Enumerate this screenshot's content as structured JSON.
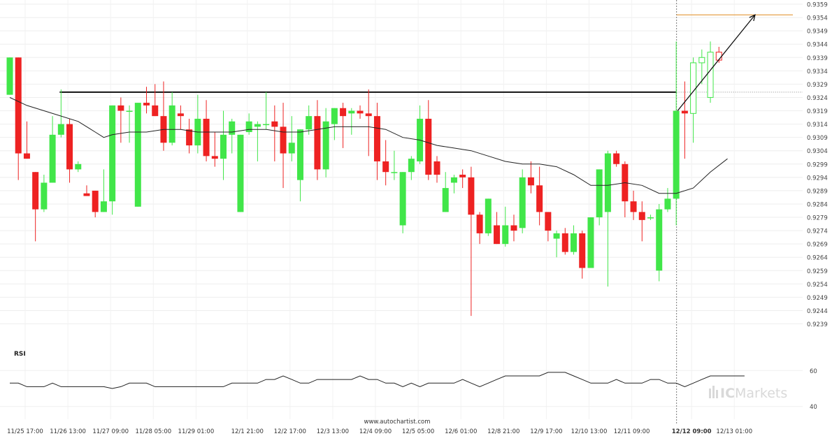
{
  "chart_data": [
    {
      "type": "candlestick",
      "title": "",
      "x_tick_labels": [
        "11/25 17:00",
        "11/26 13:00",
        "11/27 09:00",
        "11/28 05:00",
        "11/29 01:00",
        "12/1 21:00",
        "12/2 17:00",
        "12/3 13:00",
        "12/4 09:00",
        "12/5 05:00",
        "12/6 01:00",
        "12/8 21:00",
        "12/9 17:00",
        "12/10 13:00",
        "12/11 09:00",
        "12/12 09:00",
        "12/13 01:00"
      ],
      "y_tick_labels": [
        "0.9359",
        "0.9354",
        "0.9349",
        "0.9344",
        "0.9339",
        "0.9334",
        "0.9329",
        "0.9324",
        "0.9319",
        "0.9314",
        "0.9309",
        "0.9304",
        "0.9299",
        "0.9294",
        "0.9289",
        "0.9284",
        "0.9279",
        "0.9274",
        "0.9269",
        "0.9264",
        "0.9259",
        "0.9254",
        "0.9249",
        "0.9244",
        "0.9239"
      ],
      "ylim": [
        0.9236,
        0.9359
      ],
      "grid": true,
      "colors": {
        "up": "#41e649",
        "down": "#ee2222",
        "ma": "#222222",
        "resistance": "#111111",
        "target": "#e08a1e",
        "grid": "#eeeeee"
      },
      "candles": [
        {
          "o": 0.9325,
          "h": 0.9339,
          "l": 0.9325,
          "c": 0.9339
        },
        {
          "o": 0.9339,
          "h": 0.9339,
          "l": 0.9293,
          "c": 0.9303
        },
        {
          "o": 0.9303,
          "h": 0.9315,
          "l": 0.9301,
          "c": 0.9301
        },
        {
          "o": 0.9296,
          "h": 0.9296,
          "l": 0.927,
          "c": 0.9282
        },
        {
          "o": 0.9282,
          "h": 0.9295,
          "l": 0.9281,
          "c": 0.9292
        },
        {
          "o": 0.9292,
          "h": 0.9317,
          "l": 0.9292,
          "c": 0.931
        },
        {
          "o": 0.931,
          "h": 0.9327,
          "l": 0.9309,
          "c": 0.9314
        },
        {
          "o": 0.9314,
          "h": 0.9316,
          "l": 0.9292,
          "c": 0.9297
        },
        {
          "o": 0.9297,
          "h": 0.93,
          "l": 0.9296,
          "c": 0.9299
        },
        {
          "o": 0.9288,
          "h": 0.9291,
          "l": 0.9287,
          "c": 0.9287
        },
        {
          "o": 0.9289,
          "h": 0.9289,
          "l": 0.9279,
          "c": 0.9281
        },
        {
          "o": 0.9281,
          "h": 0.9297,
          "l": 0.9281,
          "c": 0.9285
        },
        {
          "o": 0.9285,
          "h": 0.9321,
          "l": 0.928,
          "c": 0.9321
        },
        {
          "o": 0.9321,
          "h": 0.9324,
          "l": 0.9307,
          "c": 0.9319
        },
        {
          "o": 0.9319,
          "h": 0.9321,
          "l": 0.9307,
          "c": 0.9319
        },
        {
          "o": 0.9283,
          "h": 0.9322,
          "l": 0.9283,
          "c": 0.9322
        },
        {
          "o": 0.9322,
          "h": 0.9328,
          "l": 0.9318,
          "c": 0.9321
        },
        {
          "o": 0.9321,
          "h": 0.9329,
          "l": 0.9317,
          "c": 0.9317
        },
        {
          "o": 0.9317,
          "h": 0.933,
          "l": 0.9304,
          "c": 0.9307
        },
        {
          "o": 0.9307,
          "h": 0.9326,
          "l": 0.9306,
          "c": 0.9321
        },
        {
          "o": 0.9318,
          "h": 0.9321,
          "l": 0.9312,
          "c": 0.9317
        },
        {
          "o": 0.9312,
          "h": 0.9316,
          "l": 0.9303,
          "c": 0.9306
        },
        {
          "o": 0.9306,
          "h": 0.9325,
          "l": 0.9303,
          "c": 0.9316
        },
        {
          "o": 0.9316,
          "h": 0.9323,
          "l": 0.93,
          "c": 0.9302
        },
        {
          "o": 0.9302,
          "h": 0.9311,
          "l": 0.9298,
          "c": 0.9301
        },
        {
          "o": 0.9301,
          "h": 0.9319,
          "l": 0.9293,
          "c": 0.931
        },
        {
          "o": 0.931,
          "h": 0.9316,
          "l": 0.9303,
          "c": 0.9315
        },
        {
          "o": 0.9281,
          "h": 0.931,
          "l": 0.9281,
          "c": 0.931
        },
        {
          "o": 0.9311,
          "h": 0.9318,
          "l": 0.931,
          "c": 0.9315
        },
        {
          "o": 0.9313,
          "h": 0.9315,
          "l": 0.93,
          "c": 0.9314
        },
        {
          "o": 0.9314,
          "h": 0.9326,
          "l": 0.9312,
          "c": 0.9314
        },
        {
          "o": 0.9315,
          "h": 0.9321,
          "l": 0.93,
          "c": 0.9313
        },
        {
          "o": 0.9313,
          "h": 0.9322,
          "l": 0.929,
          "c": 0.9303
        },
        {
          "o": 0.9303,
          "h": 0.9317,
          "l": 0.93,
          "c": 0.9307
        },
        {
          "o": 0.9293,
          "h": 0.9312,
          "l": 0.9285,
          "c": 0.9312
        },
        {
          "o": 0.9312,
          "h": 0.9321,
          "l": 0.931,
          "c": 0.9317
        },
        {
          "o": 0.9317,
          "h": 0.9323,
          "l": 0.9293,
          "c": 0.9297
        },
        {
          "o": 0.9297,
          "h": 0.932,
          "l": 0.9294,
          "c": 0.9315
        },
        {
          "o": 0.9314,
          "h": 0.932,
          "l": 0.9308,
          "c": 0.932
        },
        {
          "o": 0.932,
          "h": 0.9322,
          "l": 0.9305,
          "c": 0.9317
        },
        {
          "o": 0.9318,
          "h": 0.932,
          "l": 0.931,
          "c": 0.9319
        },
        {
          "o": 0.9319,
          "h": 0.9321,
          "l": 0.9316,
          "c": 0.9318
        },
        {
          "o": 0.9318,
          "h": 0.9327,
          "l": 0.9302,
          "c": 0.9317
        },
        {
          "o": 0.9317,
          "h": 0.9322,
          "l": 0.9293,
          "c": 0.93
        },
        {
          "o": 0.93,
          "h": 0.9308,
          "l": 0.9291,
          "c": 0.9296
        },
        {
          "o": 0.9296,
          "h": 0.9304,
          "l": 0.9293,
          "c": 0.9296
        },
        {
          "o": 0.9276,
          "h": 0.9296,
          "l": 0.9273,
          "c": 0.9296
        },
        {
          "o": 0.9296,
          "h": 0.9302,
          "l": 0.9293,
          "c": 0.9301
        },
        {
          "o": 0.93,
          "h": 0.9321,
          "l": 0.9299,
          "c": 0.9316
        },
        {
          "o": 0.9316,
          "h": 0.9323,
          "l": 0.9293,
          "c": 0.9295
        },
        {
          "o": 0.93,
          "h": 0.9302,
          "l": 0.9292,
          "c": 0.9295
        },
        {
          "o": 0.9281,
          "h": 0.9296,
          "l": 0.9281,
          "c": 0.929
        },
        {
          "o": 0.9292,
          "h": 0.9295,
          "l": 0.9288,
          "c": 0.9294
        },
        {
          "o": 0.9295,
          "h": 0.9297,
          "l": 0.929,
          "c": 0.9294
        },
        {
          "o": 0.9294,
          "h": 0.9298,
          "l": 0.9242,
          "c": 0.928
        },
        {
          "o": 0.928,
          "h": 0.9281,
          "l": 0.9269,
          "c": 0.9273
        },
        {
          "o": 0.9273,
          "h": 0.9286,
          "l": 0.9272,
          "c": 0.9286
        },
        {
          "o": 0.9276,
          "h": 0.9281,
          "l": 0.9269,
          "c": 0.9269
        },
        {
          "o": 0.9269,
          "h": 0.9283,
          "l": 0.9268,
          "c": 0.9276
        },
        {
          "o": 0.9276,
          "h": 0.928,
          "l": 0.927,
          "c": 0.9274
        },
        {
          "o": 0.9275,
          "h": 0.9297,
          "l": 0.9273,
          "c": 0.9294
        },
        {
          "o": 0.9294,
          "h": 0.93,
          "l": 0.9288,
          "c": 0.9291
        },
        {
          "o": 0.9291,
          "h": 0.9298,
          "l": 0.9276,
          "c": 0.9281
        },
        {
          "o": 0.9281,
          "h": 0.9281,
          "l": 0.927,
          "c": 0.9274
        },
        {
          "o": 0.9271,
          "h": 0.9274,
          "l": 0.9264,
          "c": 0.9273
        },
        {
          "o": 0.9273,
          "h": 0.9275,
          "l": 0.9265,
          "c": 0.9266
        },
        {
          "o": 0.9266,
          "h": 0.9276,
          "l": 0.9265,
          "c": 0.9273
        },
        {
          "o": 0.9273,
          "h": 0.9274,
          "l": 0.9256,
          "c": 0.926
        },
        {
          "o": 0.926,
          "h": 0.9279,
          "l": 0.926,
          "c": 0.9279
        },
        {
          "o": 0.9279,
          "h": 0.9297,
          "l": 0.9276,
          "c": 0.9297
        },
        {
          "o": 0.9281,
          "h": 0.9304,
          "l": 0.9253,
          "c": 0.9303
        },
        {
          "o": 0.9303,
          "h": 0.9304,
          "l": 0.9298,
          "c": 0.9299
        },
        {
          "o": 0.9299,
          "h": 0.93,
          "l": 0.9279,
          "c": 0.9285
        },
        {
          "o": 0.9285,
          "h": 0.9289,
          "l": 0.9278,
          "c": 0.9281
        },
        {
          "o": 0.9281,
          "h": 0.9285,
          "l": 0.927,
          "c": 0.9278
        },
        {
          "o": 0.9279,
          "h": 0.928,
          "l": 0.9278,
          "c": 0.9279
        },
        {
          "o": 0.9259,
          "h": 0.9284,
          "l": 0.9255,
          "c": 0.9282
        },
        {
          "o": 0.9282,
          "h": 0.929,
          "l": 0.9281,
          "c": 0.9286
        },
        {
          "o": 0.9286,
          "h": 0.9345,
          "l": 0.9276,
          "c": 0.9319
        },
        {
          "o": 0.9319,
          "h": 0.933,
          "l": 0.9301,
          "c": 0.9318
        },
        {
          "o": 0.9318,
          "h": 0.9339,
          "l": 0.9307,
          "c": 0.9337
        },
        {
          "o": 0.9337,
          "h": 0.9342,
          "l": 0.9329,
          "c": 0.9339
        },
        {
          "o": 0.9324,
          "h": 0.9345,
          "l": 0.9322,
          "c": 0.9341
        },
        {
          "o": 0.9341,
          "h": 0.9343,
          "l": 0.9337,
          "c": 0.9338
        }
      ],
      "moving_average": [
        [
          0,
          0.9324
        ],
        [
          2,
          0.9321
        ],
        [
          4,
          0.9319
        ],
        [
          6,
          0.9317
        ],
        [
          8,
          0.9315
        ],
        [
          10,
          0.9311
        ],
        [
          11,
          0.9309
        ],
        [
          12,
          0.931
        ],
        [
          14,
          0.9311
        ],
        [
          16,
          0.9311
        ],
        [
          18,
          0.9312
        ],
        [
          20,
          0.9312
        ],
        [
          22,
          0.9311
        ],
        [
          24,
          0.9311
        ],
        [
          26,
          0.9311
        ],
        [
          28,
          0.9312
        ],
        [
          30,
          0.9312
        ],
        [
          32,
          0.9311
        ],
        [
          34,
          0.9311
        ],
        [
          36,
          0.9312
        ],
        [
          38,
          0.9313
        ],
        [
          40,
          0.9313
        ],
        [
          42,
          0.9313
        ],
        [
          44,
          0.9312
        ],
        [
          46,
          0.9309
        ],
        [
          48,
          0.9308
        ],
        [
          50,
          0.9306
        ],
        [
          52,
          0.9305
        ],
        [
          54,
          0.9304
        ],
        [
          56,
          0.9302
        ],
        [
          58,
          0.93
        ],
        [
          60,
          0.9299
        ],
        [
          62,
          0.9299
        ],
        [
          64,
          0.9298
        ],
        [
          66,
          0.9295
        ],
        [
          68,
          0.9291
        ],
        [
          70,
          0.9291
        ],
        [
          72,
          0.9292
        ],
        [
          74,
          0.9291
        ],
        [
          76,
          0.9288
        ],
        [
          78,
          0.9288
        ],
        [
          80,
          0.929
        ],
        [
          82,
          0.9296
        ],
        [
          84,
          0.9301
        ]
      ],
      "resistance_level": 0.9326,
      "target_level": 0.9355,
      "breakout_index": 78,
      "trend_arrow": {
        "from": [
          78,
          0.9319
        ],
        "to": [
          86,
          0.9355
        ]
      }
    },
    {
      "type": "line",
      "title": "RSI",
      "y_tick_labels": [
        "60",
        "40"
      ],
      "ylim": [
        36,
        64
      ],
      "values": [
        53,
        53,
        51,
        51,
        51,
        53,
        51,
        51,
        51,
        51,
        51,
        51,
        50,
        51,
        53,
        53,
        53,
        51,
        51,
        51,
        51,
        51,
        51,
        51,
        51,
        51,
        53,
        53,
        53,
        53,
        55,
        55,
        57,
        55,
        53,
        53,
        55,
        55,
        55,
        55,
        55,
        57,
        55,
        55,
        53,
        53,
        51,
        53,
        51,
        53,
        53,
        53,
        53,
        55,
        53,
        51,
        53,
        55,
        57,
        57,
        57,
        57,
        57,
        59,
        59,
        59,
        57,
        55,
        53,
        53,
        53,
        55,
        53,
        53,
        53,
        55,
        55,
        53,
        53,
        51,
        53,
        55,
        57,
        57,
        57,
        57,
        57
      ]
    }
  ],
  "watermark": "www.autochartist.com",
  "brand": {
    "prefix": "IC",
    "suffix": "Markets"
  }
}
